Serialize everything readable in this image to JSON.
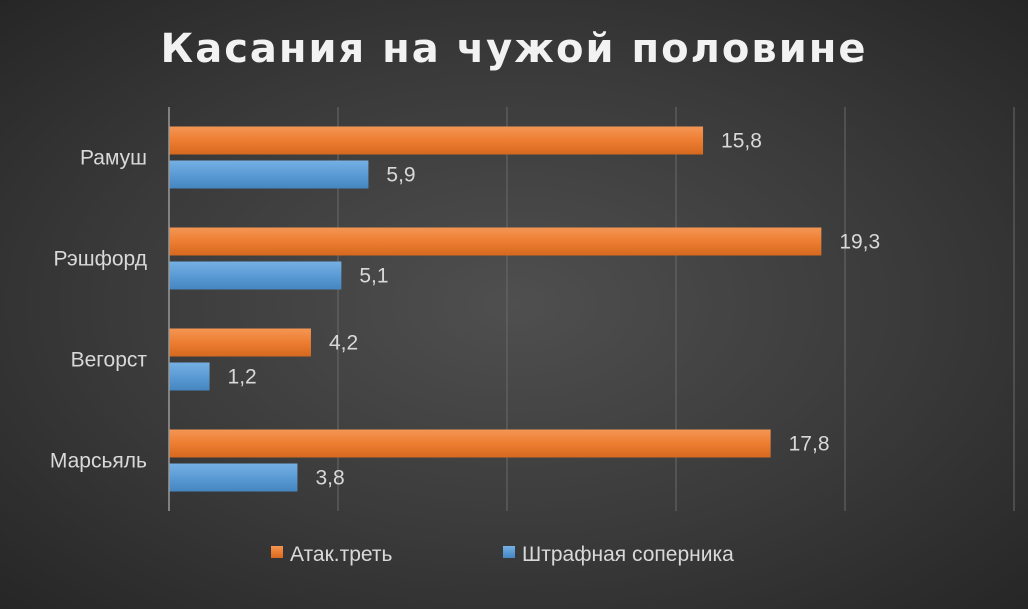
{
  "chart_data": {
    "type": "bar",
    "orientation": "horizontal",
    "title": "Касания на чужой половине",
    "categories": [
      "Рамуш",
      "Рэшфорд",
      "Вегорст",
      "Марсьяль"
    ],
    "series": [
      {
        "name": "Атак.треть",
        "color": "#ed7d31",
        "values": [
          15.8,
          19.3,
          4.2,
          17.8
        ],
        "labels": [
          "15,8",
          "19,3",
          "4,2",
          "17,8"
        ]
      },
      {
        "name": "Штрафная соперника",
        "color": "#5b9bd5",
        "values": [
          5.9,
          5.1,
          1.2,
          3.8
        ],
        "labels": [
          "5,9",
          "5,1",
          "1,2",
          "3,8"
        ]
      }
    ],
    "xlim": [
      0,
      25
    ],
    "grid": true,
    "legend_position": "bottom"
  }
}
